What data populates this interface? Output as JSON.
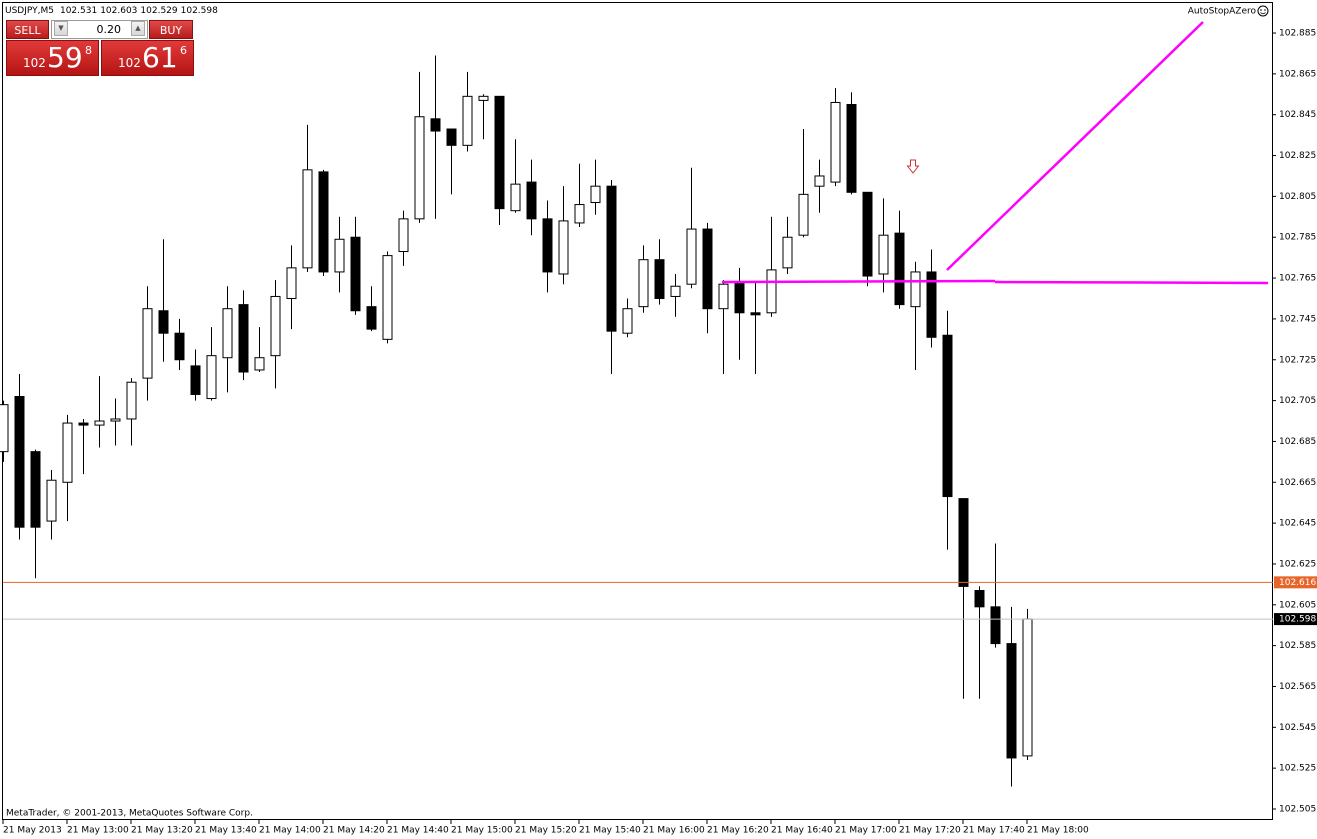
{
  "chart_data": {
    "type": "candlestick",
    "symbol": "USDJPY,M5",
    "ohlc": [
      102.531,
      102.603,
      102.529,
      102.598
    ],
    "indicator": "AutoStopAZero",
    "copyright": "MetaTrader, © 2001-2013, MetaQuotes Software Corp.",
    "categories": [
      "21 May 2013",
      null,
      null,
      null,
      "21 May 13:00",
      null,
      null,
      null,
      "21 May 13:20",
      null,
      null,
      null,
      "21 May 13:40",
      null,
      null,
      null,
      "21 May 14:00",
      null,
      null,
      null,
      "21 May 14:20",
      null,
      null,
      null,
      "21 May 14:40",
      null,
      null,
      null,
      "21 May 15:00",
      null,
      null,
      null,
      "21 May 15:20",
      null,
      null,
      null,
      "21 May 15:40",
      null,
      null,
      null,
      "21 May 16:00",
      null,
      null,
      null,
      "21 May 16:20",
      null,
      null,
      null,
      "21 May 16:40",
      null,
      null,
      null,
      "21 May 17:00",
      null,
      null,
      null,
      "21 May 17:20",
      null,
      null,
      null,
      "21 May 17:40",
      null,
      null,
      null,
      "21 May 18:00"
    ],
    "open": [
      102.68,
      102.707,
      102.68,
      102.646,
      102.665,
      102.694,
      102.693,
      102.695,
      102.696,
      102.716,
      102.749,
      102.738,
      102.722,
      102.706,
      102.726,
      102.752,
      102.72,
      102.727,
      102.755,
      102.77,
      102.817,
      102.768,
      102.785,
      102.751,
      102.735,
      102.778,
      102.794,
      102.843,
      102.838,
      102.83,
      102.852,
      102.854,
      102.798,
      102.812,
      102.794,
      102.767,
      102.792,
      102.802,
      102.81,
      102.738,
      102.751,
      102.774,
      102.756,
      102.762,
      102.789,
      102.75,
      102.763,
      102.748,
      102.748,
      102.77,
      102.786,
      102.81,
      102.812,
      102.85,
      102.807,
      102.767,
      102.787,
      102.751,
      102.768,
      102.737,
      102.657,
      102.612,
      102.604,
      102.586,
      102.531
    ],
    "high": [
      102.705,
      102.718,
      102.681,
      102.671,
      102.698,
      102.696,
      102.717,
      102.706,
      102.716,
      102.761,
      102.784,
      102.745,
      102.73,
      102.741,
      102.761,
      102.759,
      102.741,
      102.764,
      102.781,
      102.84,
      102.818,
      102.795,
      102.795,
      102.761,
      102.778,
      102.798,
      102.866,
      102.874,
      102.838,
      102.866,
      102.855,
      102.854,
      102.833,
      102.823,
      102.803,
      102.81,
      102.821,
      102.823,
      102.813,
      102.755,
      102.781,
      102.784,
      102.767,
      102.819,
      102.792,
      102.764,
      102.77,
      102.763,
      102.795,
      102.795,
      102.838,
      102.823,
      102.858,
      102.856,
      102.807,
      102.804,
      102.798,
      102.773,
      102.779,
      102.749,
      102.657,
      102.614,
      102.635,
      102.604,
      102.603
    ],
    "low": [
      102.675,
      102.637,
      102.618,
      102.637,
      102.646,
      102.669,
      102.682,
      102.683,
      102.683,
      102.705,
      102.724,
      102.72,
      102.705,
      102.705,
      102.709,
      102.715,
      102.719,
      102.711,
      102.74,
      102.768,
      102.766,
      102.758,
      102.747,
      102.739,
      102.733,
      102.771,
      102.792,
      102.794,
      102.806,
      102.827,
      102.833,
      102.791,
      102.797,
      102.786,
      102.758,
      102.762,
      102.79,
      102.796,
      102.718,
      102.736,
      102.748,
      102.752,
      102.746,
      102.76,
      102.738,
      102.718,
      102.725,
      102.718,
      102.746,
      102.767,
      102.785,
      102.797,
      102.81,
      102.806,
      102.761,
      102.758,
      102.75,
      102.72,
      102.731,
      102.632,
      102.559,
      102.559,
      102.584,
      102.516,
      102.529
    ],
    "close": [
      102.703,
      102.643,
      102.643,
      102.666,
      102.694,
      102.693,
      102.695,
      102.696,
      102.714,
      102.75,
      102.738,
      102.725,
      102.708,
      102.727,
      102.75,
      102.719,
      102.726,
      102.756,
      102.77,
      102.818,
      102.768,
      102.784,
      102.749,
      102.74,
      102.776,
      102.794,
      102.844,
      102.837,
      102.83,
      102.854,
      102.854,
      102.799,
      102.811,
      102.794,
      102.768,
      102.793,
      102.801,
      102.81,
      102.739,
      102.75,
      102.774,
      102.755,
      102.761,
      102.789,
      102.75,
      102.762,
      102.748,
      102.747,
      102.769,
      102.785,
      102.806,
      102.815,
      102.851,
      102.807,
      102.766,
      102.786,
      102.752,
      102.768,
      102.736,
      102.658,
      102.614,
      102.604,
      102.586,
      102.53,
      102.598
    ],
    "up_color": "#ffffff",
    "down_color": "#000000",
    "ylim": [
      102.5,
      102.9
    ],
    "yticks": [
      102.505,
      102.525,
      102.545,
      102.565,
      102.585,
      102.605,
      102.625,
      102.645,
      102.665,
      102.685,
      102.705,
      102.725,
      102.745,
      102.765,
      102.785,
      102.805,
      102.825,
      102.845,
      102.865,
      102.885
    ],
    "grid": false,
    "price_lines": [
      {
        "value": 102.616,
        "color": "#e8652a",
        "box_color": "#e8652a"
      },
      {
        "value": 102.598,
        "color": "#c0c0c0",
        "box_color": "#000000"
      }
    ]
  },
  "trade_panel": {
    "sell": "SELL",
    "buy": "BUY",
    "lot": "0.20",
    "sell_price": {
      "big": "102",
      "pips": "59",
      "point": "8"
    },
    "buy_price": {
      "big": "102",
      "pips": "61",
      "point": "6"
    }
  }
}
